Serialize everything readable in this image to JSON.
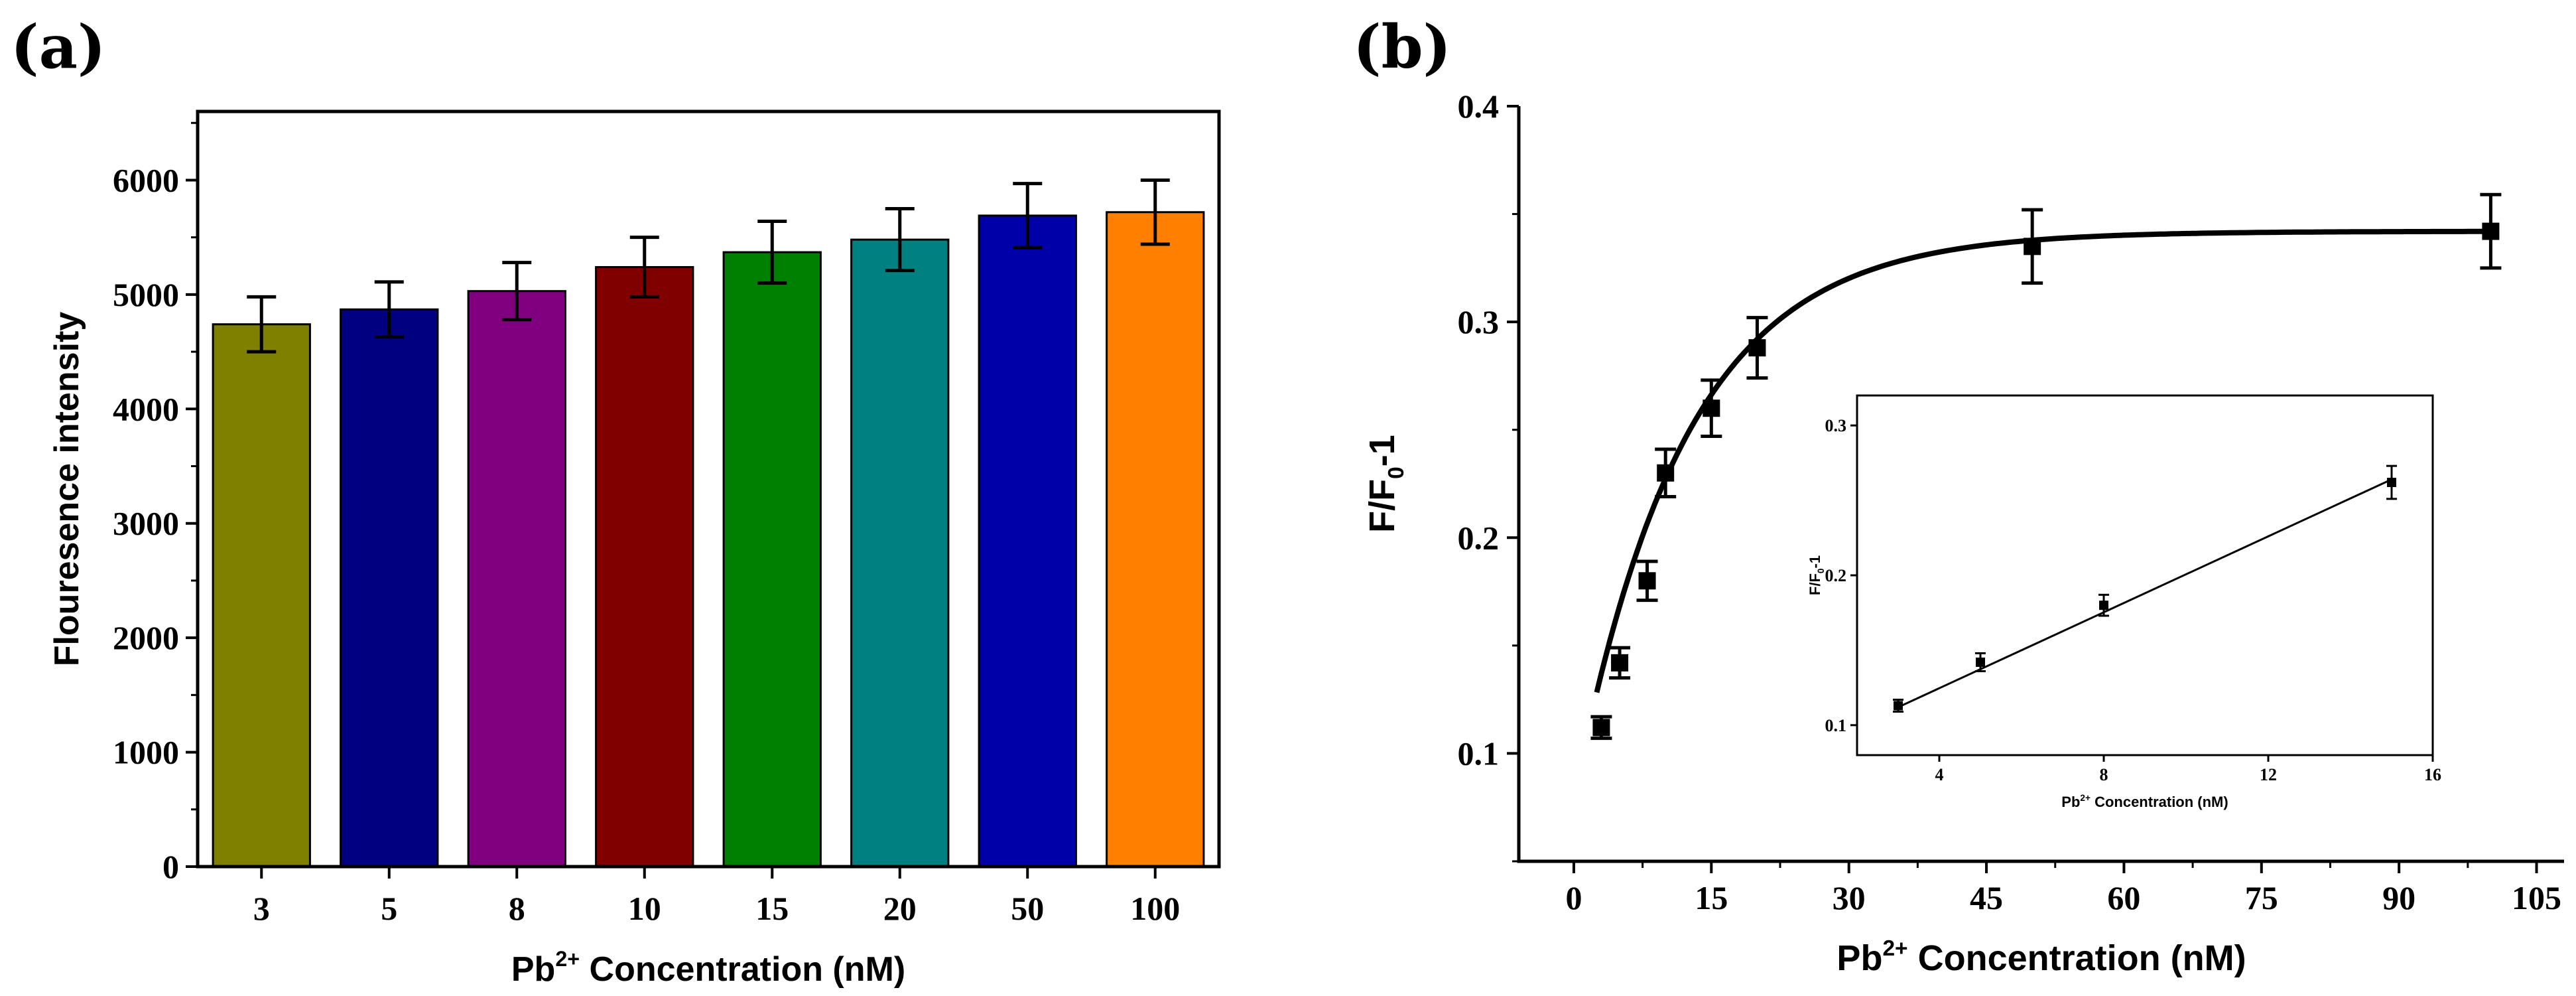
{
  "panels": {
    "a": {
      "letter": "(a)"
    },
    "b": {
      "letter": "(b)"
    }
  },
  "chart_data": [
    {
      "type": "bar",
      "panel": "(a)",
      "title": "",
      "categories": [
        "3",
        "5",
        "8",
        "10",
        "15",
        "20",
        "50",
        "100"
      ],
      "values": [
        4740,
        4870,
        5030,
        5240,
        5370,
        5480,
        5690,
        5720
      ],
      "errors": [
        240,
        240,
        250,
        260,
        270,
        270,
        280,
        280
      ],
      "colors": [
        "#7f7f00",
        "#000080",
        "#800080",
        "#800000",
        "#008000",
        "#008080",
        "#0000a8",
        "#ff8000"
      ],
      "ylim": [
        0,
        6600
      ],
      "yticks": [
        0,
        1000,
        2000,
        3000,
        4000,
        5000,
        6000
      ],
      "ylabel": "Flouresence intensity",
      "xlabel": {
        "prefix": "Pb",
        "sup": "2+",
        "suffix": " Concentration (nM)"
      },
      "grid": false
    },
    {
      "type": "scatter",
      "panel": "(b)",
      "title": "",
      "x": [
        3,
        5,
        8,
        10,
        15,
        20,
        50,
        100
      ],
      "y": [
        0.112,
        0.142,
        0.18,
        0.23,
        0.26,
        0.288,
        0.335,
        0.342
      ],
      "errors": [
        0.005,
        0.007,
        0.009,
        0.011,
        0.013,
        0.014,
        0.017,
        0.017
      ],
      "fit": {
        "form": "exponential-saturation",
        "ymax": 0.342,
        "y0": 0.079,
        "rate": 0.083
      },
      "xlim": [
        -6,
        108
      ],
      "ylim": [
        0.05,
        0.4
      ],
      "xticks": [
        0,
        15,
        30,
        45,
        60,
        75,
        90,
        105
      ],
      "yticks": [
        0.1,
        0.2,
        0.3,
        0.4
      ],
      "ylabel": {
        "prefix": "F/F",
        "sub": "0",
        "suffix": "-1"
      },
      "xlabel": {
        "prefix": "Pb",
        "sup": "2+",
        "suffix": " Concentration (nM)"
      },
      "grid": false,
      "inset": {
        "type": "scatter",
        "x": [
          3,
          5,
          8,
          15
        ],
        "y": [
          0.113,
          0.142,
          0.18,
          0.262
        ],
        "errors": [
          0.004,
          0.006,
          0.007,
          0.011
        ],
        "fit_line": {
          "x": [
            3,
            15
          ],
          "y": [
            0.112,
            0.264
          ]
        },
        "xlim": [
          2,
          16
        ],
        "ylim": [
          0.08,
          0.32
        ],
        "xticks": [
          4,
          8,
          12,
          16
        ],
        "yticks": [
          0.1,
          0.2,
          0.3
        ],
        "ylabel": {
          "prefix": "F/F",
          "sub": "0",
          "suffix": "-1"
        },
        "xlabel": {
          "prefix": "Pb",
          "sup": "2+",
          "suffix": " Concentration (nM)"
        }
      }
    }
  ]
}
